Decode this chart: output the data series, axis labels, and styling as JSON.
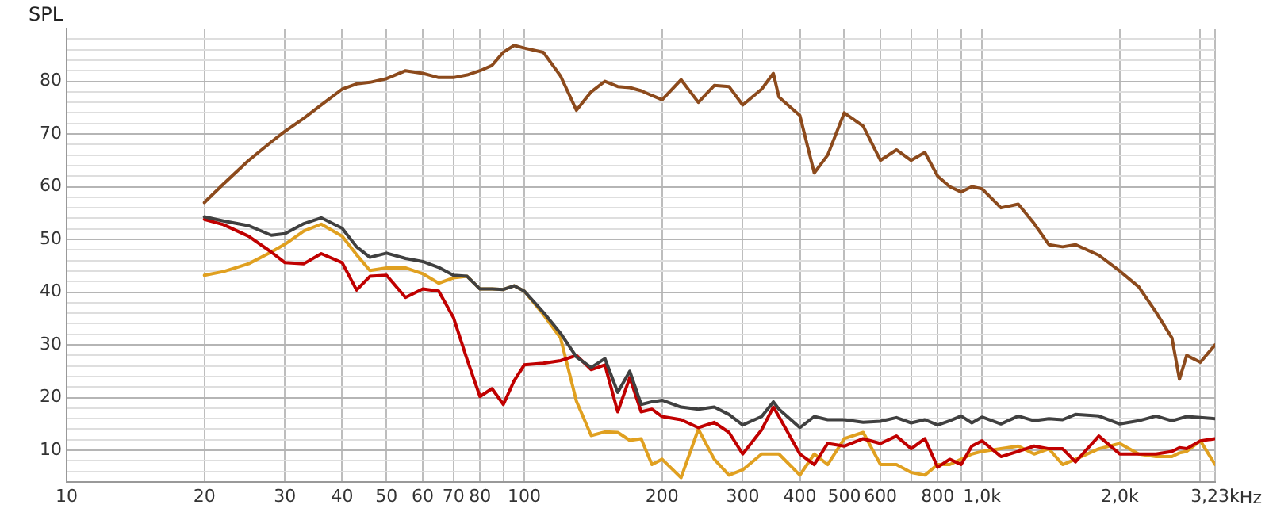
{
  "chart_data": {
    "type": "line",
    "ylabel": "SPL",
    "log": "x",
    "grid": true,
    "legend": false,
    "marker": "none",
    "line_style": "solid",
    "xlim": [
      10,
      3230
    ],
    "ylim": [
      4,
      90
    ],
    "xticks": [
      10,
      20,
      30,
      40,
      50,
      60,
      70,
      80,
      {
        "value": 90,
        "label": null
      },
      100,
      200,
      300,
      400,
      500,
      600,
      {
        "value": 700,
        "label": null
      },
      800,
      {
        "value": 900,
        "label": null
      },
      {
        "value": 1000,
        "label": "1,0k"
      },
      {
        "value": 2000,
        "label": "2,0k"
      },
      {
        "value": 3000,
        "label": null
      },
      {
        "value": 3230,
        "label": "3,23k"
      }
    ],
    "xlabel": "Hz",
    "yticks": [
      {
        "value": 6,
        "label": null
      },
      {
        "value": 8,
        "label": null
      },
      10,
      {
        "value": 12,
        "label": null
      },
      {
        "value": 14,
        "label": null
      },
      {
        "value": 16,
        "label": null
      },
      {
        "value": 18,
        "label": null
      },
      20,
      {
        "value": 22,
        "label": null
      },
      {
        "value": 24,
        "label": null
      },
      {
        "value": 26,
        "label": null
      },
      {
        "value": 28,
        "label": null
      },
      30,
      {
        "value": 32,
        "label": null
      },
      {
        "value": 34,
        "label": null
      },
      {
        "value": 36,
        "label": null
      },
      {
        "value": 38,
        "label": null
      },
      40,
      {
        "value": 42,
        "label": null
      },
      {
        "value": 44,
        "label": null
      },
      {
        "value": 46,
        "label": null
      },
      {
        "value": 48,
        "label": null
      },
      50,
      {
        "value": 52,
        "label": null
      },
      {
        "value": 54,
        "label": null
      },
      {
        "value": 56,
        "label": null
      },
      {
        "value": 58,
        "label": null
      },
      60,
      {
        "value": 62,
        "label": null
      },
      {
        "value": 64,
        "label": null
      },
      {
        "value": 66,
        "label": null
      },
      {
        "value": 68,
        "label": null
      },
      70,
      {
        "value": 72,
        "label": null
      },
      {
        "value": 74,
        "label": null
      },
      {
        "value": 76,
        "label": null
      },
      {
        "value": 78,
        "label": null
      },
      80,
      {
        "value": 82,
        "label": null
      },
      {
        "value": 84,
        "label": null
      },
      {
        "value": 86,
        "label": null
      },
      {
        "value": 88,
        "label": null
      }
    ],
    "x": [
      20,
      22,
      25,
      28,
      30,
      33,
      36,
      40,
      43,
      46,
      50,
      55,
      60,
      65,
      70,
      75,
      80,
      85,
      90,
      95,
      100,
      110,
      120,
      130,
      140,
      150,
      160,
      170,
      180,
      190,
      200,
      220,
      240,
      260,
      280,
      300,
      330,
      350,
      360,
      400,
      430,
      460,
      500,
      550,
      600,
      650,
      700,
      750,
      800,
      850,
      900,
      950,
      1000,
      1100,
      1200,
      1300,
      1400,
      1500,
      1600,
      1800,
      2000,
      2200,
      2400,
      2600,
      2700,
      2800,
      3000,
      3230
    ],
    "series": [
      {
        "color": "#e0a020",
        "values": [
          43.2,
          43.9,
          45.4,
          47.6,
          49.1,
          51.6,
          52.9,
          50.6,
          47.1,
          44.1,
          44.6,
          44.6,
          43.5,
          41.7,
          42.7,
          43,
          40.6,
          40.6,
          40.5,
          41.2,
          40.2,
          35.8,
          31.3,
          19.3,
          12.8,
          13.5,
          13.4,
          11.9,
          12.2,
          7.3,
          8.3,
          4.8,
          14,
          8.3,
          5.3,
          6.3,
          9.3,
          9.3,
          9.3,
          5.3,
          9.3,
          7.3,
          12.2,
          13.4,
          7.3,
          7.3,
          5.8,
          5.3,
          7.3,
          7.3,
          8.3,
          9.3,
          9.8,
          10.3,
          10.8,
          9.3,
          10.3,
          7.3,
          8.3,
          10.3,
          11.3,
          9.3,
          8.8,
          8.8,
          9.5,
          9.8,
          11.8,
          7.3
        ]
      },
      {
        "color": "#c00000",
        "values": [
          53.8,
          52.8,
          50.6,
          47.6,
          45.6,
          45.4,
          47.3,
          45.6,
          40.4,
          43,
          43.2,
          39,
          40.6,
          40.2,
          35.2,
          27.2,
          20.2,
          21.7,
          18.7,
          23.2,
          26.2,
          26.5,
          27,
          28,
          25.3,
          26.2,
          17.3,
          23.8,
          17.3,
          17.8,
          16.4,
          15.8,
          14.3,
          15.3,
          13.4,
          9.3,
          13.9,
          18.2,
          16.4,
          9.3,
          7.3,
          11.3,
          10.8,
          12.2,
          11.3,
          12.7,
          10.3,
          12.2,
          6.8,
          8.3,
          7.3,
          10.8,
          11.8,
          8.8,
          9.8,
          10.8,
          10.3,
          10.3,
          7.8,
          12.7,
          9.3,
          9.3,
          9.3,
          9.8,
          10.5,
          10.3,
          11.8,
          12.2
        ]
      },
      {
        "color": "#404040",
        "values": [
          54.3,
          53.5,
          52.6,
          50.8,
          51.1,
          53,
          54.1,
          52.1,
          48.6,
          46.6,
          47.4,
          46.4,
          45.8,
          44.7,
          43.2,
          43,
          40.6,
          40.6,
          40.5,
          41.2,
          40.2,
          36.2,
          32.2,
          27.7,
          25.7,
          27.4,
          21,
          25,
          18.7,
          19.2,
          19.5,
          18.2,
          17.8,
          18.2,
          16.8,
          14.8,
          16.4,
          19.2,
          17.8,
          14.3,
          16.4,
          15.8,
          15.8,
          15.3,
          15.5,
          16.2,
          15.2,
          15.8,
          14.8,
          15.6,
          16.5,
          15.2,
          16.3,
          15,
          16.5,
          15.6,
          16,
          15.8,
          16.8,
          16.5,
          15,
          15.6,
          16.5,
          15.6,
          16,
          16.4,
          16.2,
          16
        ]
      },
      {
        "color": "#8c4a1c",
        "values": [
          57,
          60.5,
          65,
          68.5,
          70.5,
          73,
          75.5,
          78.5,
          79.5,
          79.8,
          80.5,
          82,
          81.5,
          80.7,
          80.7,
          81.2,
          82,
          83,
          85.5,
          86.8,
          86.3,
          85.5,
          81,
          74.5,
          78,
          80,
          79,
          78.8,
          78.2,
          77.3,
          76.5,
          80.3,
          76,
          79.2,
          79,
          75.5,
          78.5,
          81.5,
          77,
          73.5,
          62.6,
          66,
          74,
          71.5,
          65,
          67,
          65,
          66.5,
          62,
          60,
          59,
          60,
          59.6,
          56,
          56.7,
          53,
          49,
          48.6,
          49,
          47,
          44,
          41,
          36.2,
          31.3,
          23.5,
          28,
          26.7,
          30
        ]
      }
    ]
  }
}
